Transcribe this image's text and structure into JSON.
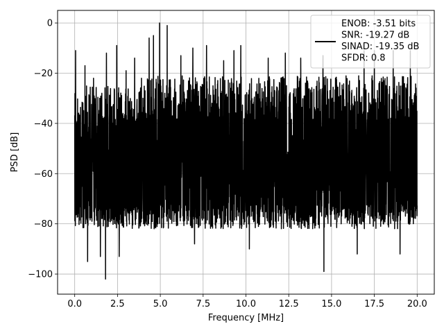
{
  "chart_data": {
    "type": "line",
    "title": "",
    "xlabel": "Frequency [MHz]",
    "ylabel": "PSD [dB]",
    "xlim": [
      -1.0,
      21.0
    ],
    "ylim": [
      -108,
      5
    ],
    "x_ticks": [
      0.0,
      2.5,
      5.0,
      7.5,
      10.0,
      12.5,
      15.0,
      17.5,
      20.0
    ],
    "x_tick_labels": [
      "0.0",
      "2.5",
      "5.0",
      "7.5",
      "10.0",
      "12.5",
      "15.0",
      "17.5",
      "20.0"
    ],
    "y_ticks": [
      0,
      -20,
      -40,
      -60,
      -80,
      -100
    ],
    "y_tick_labels": [
      "0",
      "−20",
      "−40",
      "−60",
      "−80",
      "−100"
    ],
    "grid": true,
    "legend_position": "top-right",
    "legend_lines": [
      "ENOB: -3.51 bits",
      "SNR: -19.27 dB",
      "SINAD: -19.35 dB",
      "SFDR: 0.8"
    ],
    "series": [
      {
        "color": "#000000",
        "x_range": [
          0.0,
          20.0
        ],
        "peaks": [
          {
            "x": 0.05,
            "y": -11
          },
          {
            "x": 0.6,
            "y": -17
          },
          {
            "x": 1.1,
            "y": -22
          },
          {
            "x": 1.85,
            "y": -12
          },
          {
            "x": 2.45,
            "y": -9
          },
          {
            "x": 3.0,
            "y": -19
          },
          {
            "x": 3.5,
            "y": -14
          },
          {
            "x": 3.9,
            "y": -22
          },
          {
            "x": 4.35,
            "y": -6
          },
          {
            "x": 4.6,
            "y": -5
          },
          {
            "x": 4.95,
            "y": 0
          },
          {
            "x": 5.4,
            "y": -1
          },
          {
            "x": 6.2,
            "y": -13
          },
          {
            "x": 6.9,
            "y": -10
          },
          {
            "x": 7.7,
            "y": -9
          },
          {
            "x": 8.7,
            "y": -15
          },
          {
            "x": 9.3,
            "y": -11
          },
          {
            "x": 9.7,
            "y": -9
          },
          {
            "x": 11.3,
            "y": -14
          },
          {
            "x": 12.3,
            "y": -12
          },
          {
            "x": 13.2,
            "y": -14
          },
          {
            "x": 14.5,
            "y": -13
          },
          {
            "x": 16.9,
            "y": -11
          },
          {
            "x": 17.5,
            "y": -11
          },
          {
            "x": 18.6,
            "y": -11
          },
          {
            "x": 19.6,
            "y": -11
          }
        ],
        "troughs": [
          {
            "x": 0.75,
            "y": -95
          },
          {
            "x": 1.5,
            "y": -93
          },
          {
            "x": 1.8,
            "y": -102
          },
          {
            "x": 2.6,
            "y": -93
          },
          {
            "x": 7.0,
            "y": -88
          },
          {
            "x": 10.2,
            "y": -90
          },
          {
            "x": 14.55,
            "y": -99
          },
          {
            "x": 16.5,
            "y": -92
          },
          {
            "x": 19.0,
            "y": -92
          }
        ]
      }
    ]
  }
}
